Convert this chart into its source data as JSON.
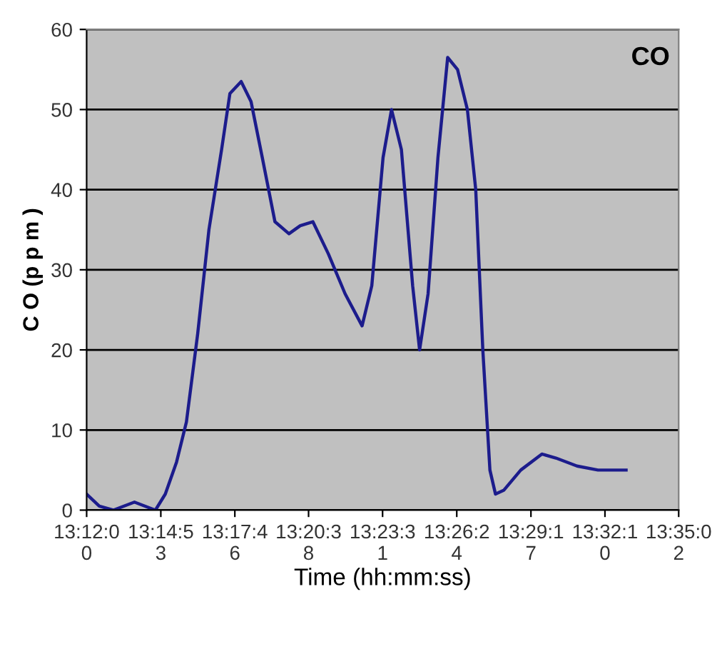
{
  "chart_data": {
    "type": "line",
    "title": "CO",
    "xlabel": "Time (hh:mm:ss)",
    "ylabel": "C O (p p m )",
    "x": [
      13.2,
      13.2082,
      13.2173,
      13.231,
      13.2446,
      13.251,
      13.2583,
      13.2647,
      13.272,
      13.2793,
      13.2875,
      13.2929,
      13.3002,
      13.3066,
      13.3139,
      13.3221,
      13.3312,
      13.3385,
      13.3467,
      13.3567,
      13.3676,
      13.3786,
      13.3849,
      13.3922,
      13.3977,
      13.4041,
      13.4114,
      13.4159,
      13.4214,
      13.4278,
      13.4341,
      13.4405,
      13.4469,
      13.4523,
      13.4569,
      13.4615,
      13.4651,
      13.4706,
      13.4815,
      13.4952,
      13.5043,
      13.518,
      13.5316,
      13.5498
    ],
    "series": [
      {
        "color": "#1c1c8c",
        "values": [
          2,
          0.5,
          0,
          1,
          0,
          2,
          6,
          11,
          22,
          35,
          45,
          52,
          53.5,
          51,
          44,
          36,
          34.5,
          35.5,
          36,
          32,
          27,
          23,
          28,
          44,
          50,
          45,
          28,
          20,
          27,
          44,
          56.5,
          55,
          50,
          40,
          20,
          5,
          2,
          2.5,
          5,
          7,
          6.5,
          5.5,
          5,
          5
        ]
      }
    ],
    "xlim": [
      13.2,
      13.5839
    ],
    "xticks": [
      {
        "value": 13.2,
        "label": "13:12:00"
      },
      {
        "value": 13.2481,
        "label": "13:14:53"
      },
      {
        "value": 13.2961,
        "label": "13:17:46"
      },
      {
        "value": 13.3439,
        "label": "13:20:38"
      },
      {
        "value": 13.3919,
        "label": "13:23:31"
      },
      {
        "value": 13.44,
        "label": "13:26:24"
      },
      {
        "value": 13.4881,
        "label": "13:29:17"
      },
      {
        "value": 13.5361,
        "label": "13:32:10"
      },
      {
        "value": 13.5839,
        "label": "13:35:02"
      }
    ],
    "ylim": [
      0,
      60
    ],
    "yticks": [
      0,
      10,
      20,
      30,
      40,
      50,
      60
    ],
    "grid": "y",
    "marker": "none",
    "line_style": "solid"
  }
}
